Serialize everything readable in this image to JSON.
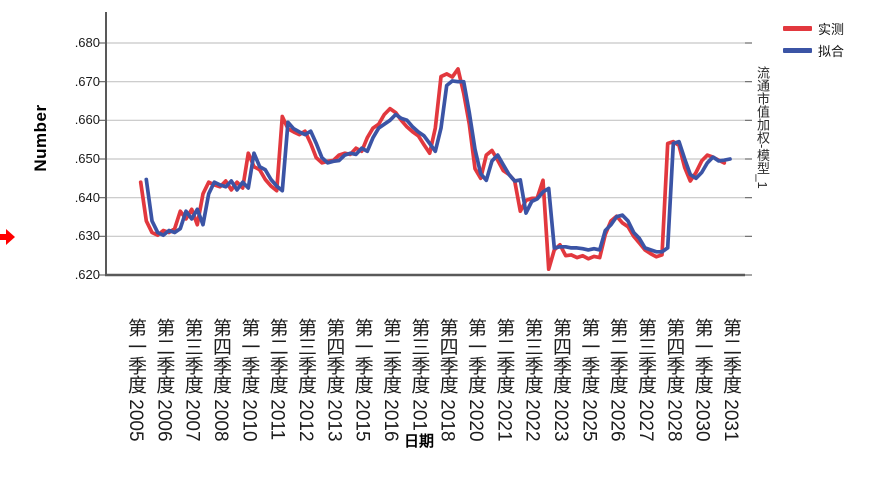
{
  "legend": {
    "items": [
      {
        "label": "实测",
        "color": "#e2383e"
      },
      {
        "label": "拟合",
        "color": "#3b54a5"
      }
    ]
  },
  "right_panel_label": "流通市值加权-模型_1",
  "cursor_arrow_color": "#ff0000",
  "chart_data": {
    "type": "line",
    "title": "",
    "xlabel": "日期",
    "ylabel": "Number",
    "ylim": [
      0.62,
      0.688
    ],
    "grid": "horizontal",
    "legend_position": "top-right",
    "y_tick_values": [
      0.68,
      0.67,
      0.66,
      0.65,
      0.64,
      0.63,
      0.62
    ],
    "y_tick_labels": [
      ".680",
      ".670",
      ".660",
      ".650",
      ".640",
      ".630",
      ".620"
    ],
    "x_tick_labels": [
      "第一季度 2005",
      "第二季度 2006",
      "第三季度 2007",
      "第四季度 2008",
      "第一季度 2010",
      "第二季度 2011",
      "第三季度 2012",
      "第四季度 2013",
      "第一季度 2015",
      "第二季度 2016",
      "第三季度 2017",
      "第四季度 2018",
      "第一季度 2020",
      "第二季度 2021",
      "第三季度 2022",
      "第四季度 2023",
      "第一季度 2025",
      "第二季度 2026",
      "第三季度 2027",
      "第四季度 2028",
      "第一季度 2030",
      "第二季度 2031"
    ],
    "x_ticks_every_n_quarters": 5,
    "quarters_start": "2005Q1",
    "series": [
      {
        "name": "实测",
        "color": "#e2383e",
        "start_quarter_index": 1,
        "values": [
          0.644,
          0.634,
          0.631,
          0.6303,
          0.6315,
          0.631,
          0.632,
          0.6365,
          0.6345,
          0.637,
          0.633,
          0.641,
          0.644,
          0.6433,
          0.6428,
          0.6443,
          0.642,
          0.644,
          0.6425,
          0.6515,
          0.648,
          0.6472,
          0.6447,
          0.643,
          0.6418,
          0.661,
          0.6578,
          0.657,
          0.6563,
          0.6572,
          0.654,
          0.6503,
          0.649,
          0.6494,
          0.6496,
          0.651,
          0.6515,
          0.6512,
          0.6528,
          0.652,
          0.6555,
          0.658,
          0.659,
          0.6615,
          0.663,
          0.662,
          0.66,
          0.6583,
          0.657,
          0.656,
          0.6537,
          0.6515,
          0.658,
          0.6713,
          0.672,
          0.6712,
          0.6733,
          0.667,
          0.659,
          0.6475,
          0.645,
          0.651,
          0.6522,
          0.6497,
          0.647,
          0.646,
          0.6443,
          0.6365,
          0.6393,
          0.6398,
          0.64,
          0.6445,
          0.6215,
          0.6265,
          0.6278,
          0.625,
          0.6252,
          0.6245,
          0.625,
          0.6242,
          0.6248,
          0.6245,
          0.6305,
          0.634,
          0.6352,
          0.6335,
          0.6325,
          0.63,
          0.6283,
          0.6265,
          0.6255,
          0.6247,
          0.6252,
          0.654,
          0.6545,
          0.6535,
          0.6478,
          0.6443,
          0.6465,
          0.6495,
          0.651,
          0.6505,
          0.6497,
          0.649
        ]
      },
      {
        "name": "拟合",
        "color": "#3b54a5",
        "start_quarter_index": 2,
        "values": [
          0.6447,
          0.634,
          0.631,
          0.6303,
          0.6315,
          0.631,
          0.632,
          0.6365,
          0.6345,
          0.637,
          0.633,
          0.641,
          0.644,
          0.6433,
          0.6428,
          0.6443,
          0.642,
          0.644,
          0.6425,
          0.6515,
          0.648,
          0.6472,
          0.6447,
          0.643,
          0.6418,
          0.6595,
          0.6578,
          0.657,
          0.6563,
          0.6572,
          0.654,
          0.6503,
          0.649,
          0.6494,
          0.6496,
          0.651,
          0.6515,
          0.6512,
          0.6528,
          0.652,
          0.6555,
          0.658,
          0.659,
          0.66,
          0.6615,
          0.6605,
          0.66,
          0.6583,
          0.657,
          0.656,
          0.654,
          0.652,
          0.658,
          0.669,
          0.6702,
          0.67,
          0.67,
          0.662,
          0.6525,
          0.6462,
          0.6445,
          0.6495,
          0.651,
          0.6485,
          0.646,
          0.6443,
          0.6446,
          0.636,
          0.639,
          0.6397,
          0.6415,
          0.6424,
          0.627,
          0.6273,
          0.6273,
          0.627,
          0.627,
          0.6268,
          0.6265,
          0.6268,
          0.6265,
          0.6315,
          0.633,
          0.6351,
          0.6355,
          0.634,
          0.631,
          0.6295,
          0.627,
          0.6265,
          0.626,
          0.626,
          0.627,
          0.654,
          0.6545,
          0.65,
          0.646,
          0.645,
          0.6465,
          0.649,
          0.6505,
          0.6495,
          0.6497,
          0.65
        ]
      }
    ]
  }
}
